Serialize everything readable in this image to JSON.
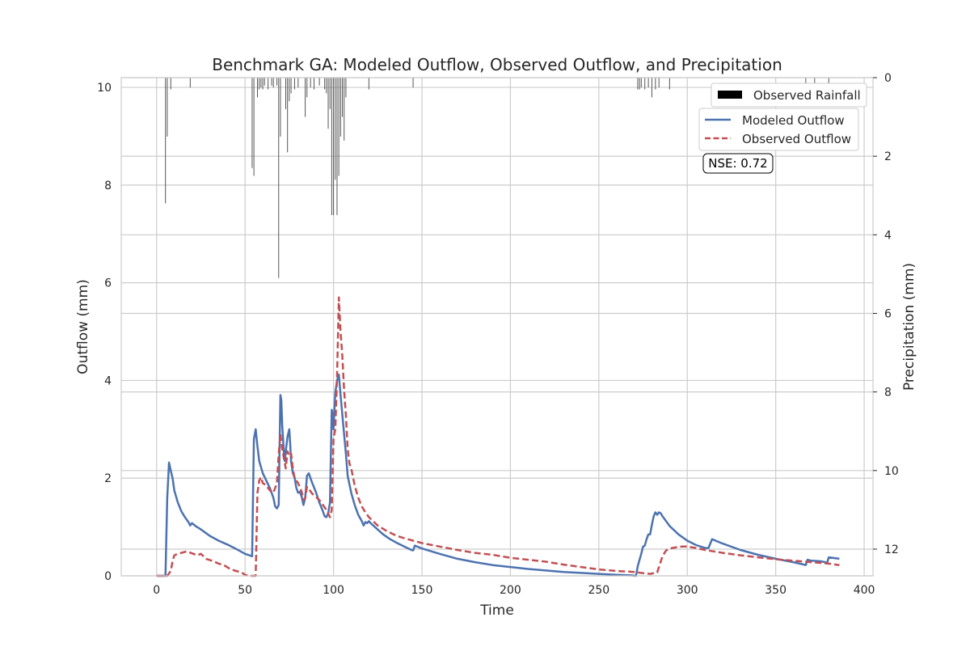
{
  "chart_data": {
    "type": "line",
    "title": "Benchmark GA: Modeled Outflow, Observed Outflow, and Precipitation",
    "xlabel": "Time",
    "ylabel": "Outflow (mm)",
    "y2label": "Precipitation (mm)",
    "xlim": [
      -20,
      405
    ],
    "ylim": [
      0,
      10.2
    ],
    "y2lim": [
      12.68,
      0
    ],
    "x_ticks": [
      0,
      50,
      100,
      150,
      200,
      250,
      300,
      350,
      400
    ],
    "y_ticks": [
      0,
      2,
      4,
      6,
      8,
      10
    ],
    "y2_ticks": [
      0,
      2,
      4,
      6,
      8,
      10,
      12
    ],
    "grid": true,
    "legend_placement": "top-right",
    "annotation": "NSE: 0.72",
    "series": [
      {
        "name": "Modeled Outflow",
        "color": "#4c72b0",
        "style": "solid",
        "points": [
          [
            0,
            0
          ],
          [
            5,
            0
          ],
          [
            6,
            1.6
          ],
          [
            7,
            2.32
          ],
          [
            8,
            2.15
          ],
          [
            9,
            2.0
          ],
          [
            10,
            1.75
          ],
          [
            12,
            1.5
          ],
          [
            14,
            1.32
          ],
          [
            16,
            1.2
          ],
          [
            18,
            1.1
          ],
          [
            19,
            1.03
          ],
          [
            20,
            1.08
          ],
          [
            22,
            1.02
          ],
          [
            25,
            0.95
          ],
          [
            30,
            0.82
          ],
          [
            35,
            0.72
          ],
          [
            40,
            0.64
          ],
          [
            45,
            0.55
          ],
          [
            50,
            0.45
          ],
          [
            54,
            0.4
          ],
          [
            55,
            2.8
          ],
          [
            56,
            3.0
          ],
          [
            57,
            2.65
          ],
          [
            58,
            2.35
          ],
          [
            60,
            2.1
          ],
          [
            62,
            1.95
          ],
          [
            64,
            1.8
          ],
          [
            66,
            1.6
          ],
          [
            67,
            1.42
          ],
          [
            68,
            1.38
          ],
          [
            69,
            1.45
          ],
          [
            70,
            3.7
          ],
          [
            70.5,
            3.6
          ],
          [
            71,
            3.1
          ],
          [
            72,
            2.5
          ],
          [
            72.5,
            2.35
          ],
          [
            73,
            2.55
          ],
          [
            74,
            2.85
          ],
          [
            75,
            3.0
          ],
          [
            75.5,
            2.7
          ],
          [
            76,
            2.35
          ],
          [
            77,
            2.1
          ],
          [
            78,
            2.02
          ],
          [
            79,
            1.8
          ],
          [
            80,
            1.7
          ],
          [
            81,
            1.72
          ],
          [
            82,
            1.62
          ],
          [
            83,
            1.45
          ],
          [
            84,
            1.6
          ],
          [
            85,
            2.05
          ],
          [
            86,
            2.1
          ],
          [
            87,
            2.0
          ],
          [
            88,
            1.9
          ],
          [
            90,
            1.72
          ],
          [
            92,
            1.5
          ],
          [
            94,
            1.32
          ],
          [
            95,
            1.22
          ],
          [
            96,
            1.2
          ],
          [
            97,
            1.28
          ],
          [
            98,
            1.5
          ],
          [
            99,
            3.4
          ],
          [
            99.5,
            3.3
          ],
          [
            100,
            3.0
          ],
          [
            100.5,
            3.38
          ],
          [
            101,
            3.75
          ],
          [
            102,
            4.0
          ],
          [
            103,
            4.12
          ],
          [
            104,
            3.7
          ],
          [
            105,
            3.3
          ],
          [
            106,
            2.9
          ],
          [
            107,
            2.5
          ],
          [
            108,
            2.05
          ],
          [
            110,
            1.7
          ],
          [
            112,
            1.45
          ],
          [
            114,
            1.25
          ],
          [
            116,
            1.12
          ],
          [
            117,
            1.03
          ],
          [
            118,
            1.1
          ],
          [
            119,
            1.08
          ],
          [
            120,
            1.12
          ],
          [
            121,
            1.08
          ],
          [
            124,
            0.98
          ],
          [
            128,
            0.85
          ],
          [
            132,
            0.75
          ],
          [
            136,
            0.67
          ],
          [
            140,
            0.6
          ],
          [
            144,
            0.53
          ],
          [
            145,
            0.52
          ],
          [
            146,
            0.62
          ],
          [
            150,
            0.56
          ],
          [
            160,
            0.45
          ],
          [
            170,
            0.35
          ],
          [
            180,
            0.28
          ],
          [
            190,
            0.22
          ],
          [
            200,
            0.18
          ],
          [
            210,
            0.14
          ],
          [
            220,
            0.11
          ],
          [
            230,
            0.08
          ],
          [
            240,
            0.06
          ],
          [
            250,
            0.04
          ],
          [
            260,
            0.02
          ],
          [
            268,
            0.01
          ],
          [
            271,
            0.0
          ],
          [
            272,
            0.2
          ],
          [
            274,
            0.45
          ],
          [
            275,
            0.6
          ],
          [
            276,
            0.62
          ],
          [
            277,
            0.75
          ],
          [
            278,
            0.85
          ],
          [
            279,
            0.85
          ],
          [
            280,
            1.05
          ],
          [
            281,
            1.22
          ],
          [
            282,
            1.3
          ],
          [
            283,
            1.25
          ],
          [
            284,
            1.3
          ],
          [
            285,
            1.28
          ],
          [
            286,
            1.22
          ],
          [
            290,
            1.02
          ],
          [
            295,
            0.85
          ],
          [
            300,
            0.72
          ],
          [
            305,
            0.63
          ],
          [
            310,
            0.57
          ],
          [
            312,
            0.57
          ],
          [
            313,
            0.66
          ],
          [
            314,
            0.75
          ],
          [
            316,
            0.72
          ],
          [
            320,
            0.66
          ],
          [
            330,
            0.53
          ],
          [
            340,
            0.43
          ],
          [
            350,
            0.35
          ],
          [
            360,
            0.28
          ],
          [
            366,
            0.23
          ],
          [
            367,
            0.22
          ],
          [
            368,
            0.33
          ],
          [
            370,
            0.31
          ],
          [
            375,
            0.3
          ],
          [
            378,
            0.28
          ],
          [
            379,
            0.26
          ],
          [
            380,
            0.38
          ],
          [
            382,
            0.37
          ],
          [
            386,
            0.35
          ]
        ]
      },
      {
        "name": "Observed Outflow",
        "color": "#c44e52",
        "style": "dashed",
        "points": [
          [
            0,
            0
          ],
          [
            6,
            0
          ],
          [
            8,
            0.1
          ],
          [
            9,
            0.3
          ],
          [
            10,
            0.42
          ],
          [
            12,
            0.45
          ],
          [
            15,
            0.48
          ],
          [
            17,
            0.5
          ],
          [
            20,
            0.46
          ],
          [
            23,
            0.42
          ],
          [
            25,
            0.45
          ],
          [
            28,
            0.35
          ],
          [
            32,
            0.3
          ],
          [
            35,
            0.25
          ],
          [
            38,
            0.22
          ],
          [
            42,
            0.13
          ],
          [
            45,
            0.1
          ],
          [
            48,
            0.07
          ],
          [
            50,
            0.02
          ],
          [
            52,
            0.0
          ],
          [
            56,
            0.0
          ],
          [
            57,
            1.7
          ],
          [
            58,
            1.95
          ],
          [
            59,
            2.02
          ],
          [
            60,
            1.9
          ],
          [
            62,
            1.85
          ],
          [
            64,
            1.75
          ],
          [
            66,
            1.7
          ],
          [
            68,
            1.9
          ],
          [
            69,
            2.5
          ],
          [
            70,
            2.9
          ],
          [
            71,
            2.6
          ],
          [
            72,
            2.4
          ],
          [
            73,
            2.2
          ],
          [
            74,
            2.55
          ],
          [
            75,
            2.45
          ],
          [
            76,
            2.5
          ],
          [
            77,
            2.2
          ],
          [
            78,
            2.0
          ],
          [
            80,
            1.9
          ],
          [
            82,
            1.72
          ],
          [
            83,
            1.55
          ],
          [
            84,
            1.6
          ],
          [
            85,
            1.82
          ],
          [
            86,
            1.78
          ],
          [
            88,
            1.68
          ],
          [
            90,
            1.62
          ],
          [
            92,
            1.55
          ],
          [
            94,
            1.45
          ],
          [
            96,
            1.35
          ],
          [
            98,
            1.2
          ],
          [
            99,
            1.35
          ],
          [
            100,
            2.8
          ],
          [
            101,
            3.0
          ],
          [
            102,
            4.1
          ],
          [
            103,
            5.7
          ],
          [
            104,
            5.0
          ],
          [
            105,
            4.5
          ],
          [
            106,
            3.8
          ],
          [
            107,
            3.3
          ],
          [
            108,
            2.6
          ],
          [
            109,
            2.3
          ],
          [
            110,
            2.2
          ],
          [
            112,
            1.85
          ],
          [
            114,
            1.6
          ],
          [
            116,
            1.42
          ],
          [
            118,
            1.3
          ],
          [
            120,
            1.2
          ],
          [
            125,
            1.03
          ],
          [
            130,
            0.92
          ],
          [
            135,
            0.83
          ],
          [
            140,
            0.77
          ],
          [
            145,
            0.72
          ],
          [
            150,
            0.67
          ],
          [
            160,
            0.6
          ],
          [
            170,
            0.53
          ],
          [
            180,
            0.47
          ],
          [
            190,
            0.43
          ],
          [
            200,
            0.37
          ],
          [
            210,
            0.33
          ],
          [
            220,
            0.29
          ],
          [
            230,
            0.23
          ],
          [
            240,
            0.18
          ],
          [
            250,
            0.13
          ],
          [
            260,
            0.1
          ],
          [
            270,
            0.08
          ],
          [
            276,
            0.05
          ],
          [
            279,
            0.04
          ],
          [
            283,
            0.07
          ],
          [
            286,
            0.4
          ],
          [
            288,
            0.52
          ],
          [
            290,
            0.56
          ],
          [
            293,
            0.58
          ],
          [
            297,
            0.6
          ],
          [
            300,
            0.6
          ],
          [
            305,
            0.57
          ],
          [
            310,
            0.53
          ],
          [
            315,
            0.5
          ],
          [
            320,
            0.47
          ],
          [
            330,
            0.42
          ],
          [
            340,
            0.38
          ],
          [
            350,
            0.34
          ],
          [
            360,
            0.31
          ],
          [
            370,
            0.28
          ],
          [
            380,
            0.25
          ],
          [
            386,
            0.22
          ]
        ]
      },
      {
        "name": "Observed Rainfall",
        "color": "#000000",
        "style": "bar",
        "axis": "secondary",
        "points": [
          [
            5,
            3.2
          ],
          [
            6,
            1.5
          ],
          [
            8,
            0.3
          ],
          [
            19,
            0.25
          ],
          [
            54,
            2.3
          ],
          [
            55,
            2.5
          ],
          [
            57,
            0.5
          ],
          [
            58,
            0.3
          ],
          [
            59,
            0.25
          ],
          [
            60,
            0.3
          ],
          [
            61,
            0.2
          ],
          [
            63,
            0.3
          ],
          [
            65,
            0.2
          ],
          [
            66,
            0.25
          ],
          [
            68,
            0.2
          ],
          [
            69,
            5.1
          ],
          [
            70,
            1.5
          ],
          [
            73,
            0.8
          ],
          [
            74,
            1.9
          ],
          [
            75,
            0.6
          ],
          [
            76,
            0.4
          ],
          [
            78,
            0.3
          ],
          [
            80,
            0.25
          ],
          [
            84,
            1.0
          ],
          [
            85,
            0.5
          ],
          [
            87,
            0.25
          ],
          [
            89,
            0.3
          ],
          [
            92,
            0.2
          ],
          [
            95,
            0.3
          ],
          [
            96,
            0.4
          ],
          [
            97,
            1.3
          ],
          [
            98,
            0.8
          ],
          [
            99,
            3.5
          ],
          [
            100,
            3.5
          ],
          [
            101,
            2.6
          ],
          [
            102,
            3.5
          ],
          [
            103,
            2.5
          ],
          [
            104,
            1.5
          ],
          [
            105,
            1.0
          ],
          [
            106,
            1.6
          ],
          [
            107,
            0.5
          ],
          [
            120,
            0.3
          ],
          [
            145,
            0.25
          ],
          [
            272,
            0.3
          ],
          [
            273,
            0.3
          ],
          [
            274,
            0.25
          ],
          [
            276,
            0.3
          ],
          [
            278,
            0.25
          ],
          [
            280,
            0.5
          ],
          [
            282,
            0.3
          ],
          [
            284,
            0.25
          ],
          [
            290,
            0.3
          ],
          [
            367,
            0.2
          ],
          [
            372,
            0.2
          ],
          [
            380,
            0.2
          ]
        ]
      }
    ]
  }
}
